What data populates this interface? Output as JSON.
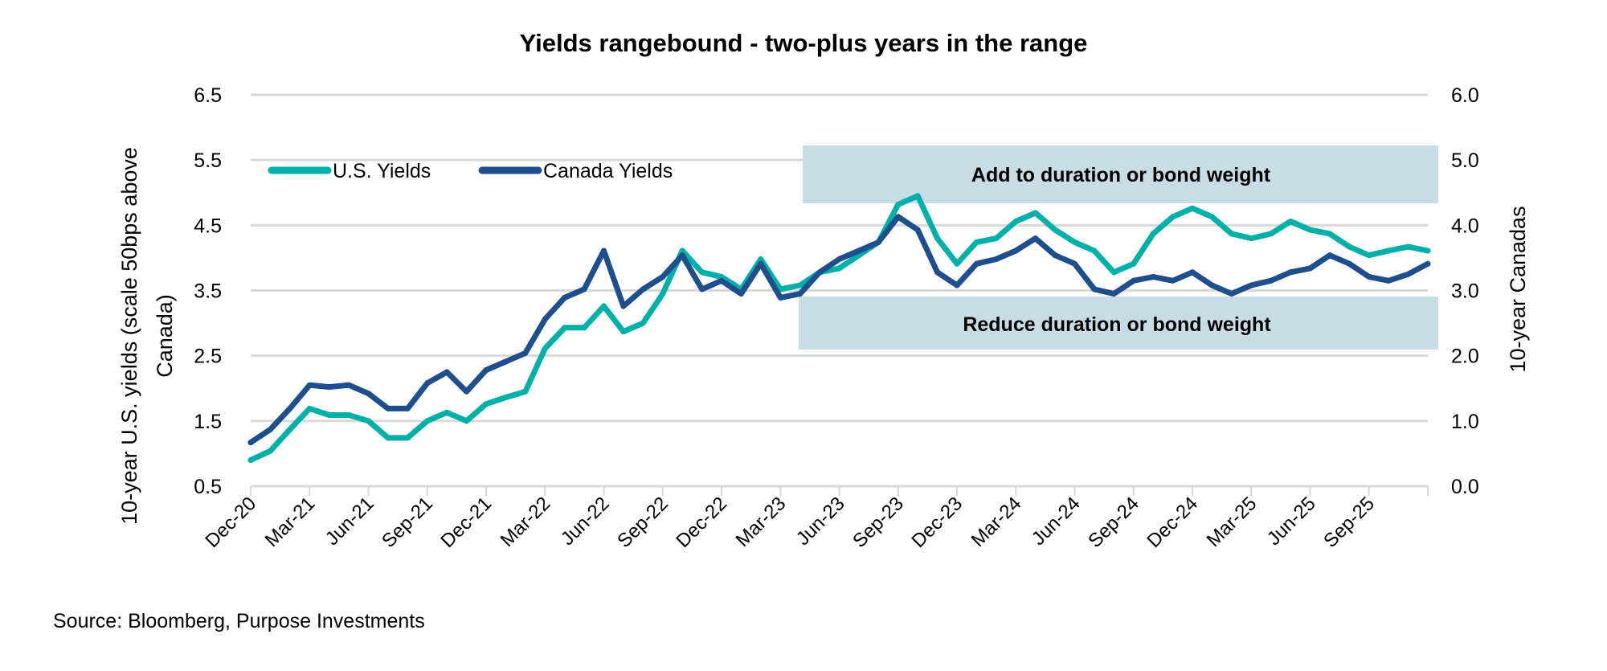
{
  "chart_data": {
    "type": "line",
    "title": "Yields rangebound - two-plus years in the range",
    "ylabel_left": [
      "10-year U.S. yields (scale 50bps above",
      "Canada)"
    ],
    "ylabel_right": "10-year Canadas",
    "ylim_left": [
      0.5,
      6.5
    ],
    "yticks_left": [
      "6.5",
      "5.5",
      "4.5",
      "3.5",
      "2.5",
      "1.5",
      "0.5"
    ],
    "ylim_right": [
      0.0,
      6.0
    ],
    "yticks_right": [
      "6.0",
      "5.0",
      "4.0",
      "3.0",
      "2.0",
      "1.0",
      "0.0"
    ],
    "xlim": [
      "2020-12",
      "2025-12"
    ],
    "xtick_labels": [
      "Dec-20",
      "Mar-21",
      "Jun-21",
      "Sep-21",
      "Dec-21",
      "Mar-22",
      "Jun-22",
      "Sep-22",
      "Dec-22",
      "Mar-23",
      "Jun-23",
      "Sep-23",
      "Dec-23",
      "Mar-24",
      "Jun-24",
      "Sep-24",
      "Dec-24",
      "Mar-25",
      "Jun-25",
      "Sep-25"
    ],
    "grid": true,
    "legend_position": "top-left",
    "x": [
      "2020-12",
      "2021-01",
      "2021-02",
      "2021-03",
      "2021-04",
      "2021-05",
      "2021-06",
      "2021-07",
      "2021-08",
      "2021-09",
      "2021-10",
      "2021-11",
      "2021-12",
      "2022-01",
      "2022-02",
      "2022-03",
      "2022-04",
      "2022-05",
      "2022-06",
      "2022-07",
      "2022-08",
      "2022-09",
      "2022-10",
      "2022-11",
      "2022-12",
      "2023-01",
      "2023-02",
      "2023-03",
      "2023-04",
      "2023-05",
      "2023-06",
      "2023-07",
      "2023-08",
      "2023-09",
      "2023-10",
      "2023-11",
      "2023-12",
      "2024-01",
      "2024-02",
      "2024-03",
      "2024-04",
      "2024-05",
      "2024-06",
      "2024-07",
      "2024-08",
      "2024-09",
      "2024-10",
      "2024-11",
      "2024-12",
      "2025-01",
      "2025-02",
      "2025-03",
      "2025-04",
      "2025-05",
      "2025-06",
      "2025-07",
      "2025-08",
      "2025-09",
      "2025-10",
      "2025-11",
      "2025-12"
    ],
    "series": [
      {
        "name": "U.S. Yields",
        "axis": "left",
        "color": "#00B0A8",
        "values": [
          0.9,
          1.04,
          1.37,
          1.69,
          1.59,
          1.59,
          1.5,
          1.24,
          1.24,
          1.5,
          1.63,
          1.5,
          1.76,
          1.86,
          1.95,
          2.61,
          2.93,
          2.93,
          3.26,
          2.87,
          3.0,
          3.45,
          4.11,
          3.78,
          3.71,
          3.52,
          3.98,
          3.52,
          3.58,
          3.78,
          3.84,
          4.04,
          4.24,
          4.82,
          4.95,
          4.3,
          3.91,
          4.24,
          4.3,
          4.56,
          4.69,
          4.43,
          4.24,
          4.11,
          3.78,
          3.91,
          4.37,
          4.63,
          4.76,
          4.63,
          4.37,
          4.3,
          4.37,
          4.56,
          4.43,
          4.37,
          4.17,
          4.04,
          4.11,
          4.17,
          4.11
        ]
      },
      {
        "name": "Canada Yields",
        "axis": "right",
        "color": "#1F4E8C",
        "values": [
          0.67,
          0.87,
          1.19,
          1.55,
          1.52,
          1.55,
          1.42,
          1.19,
          1.19,
          1.58,
          1.75,
          1.45,
          1.78,
          1.91,
          2.04,
          2.56,
          2.89,
          3.02,
          3.61,
          2.76,
          3.02,
          3.21,
          3.54,
          3.02,
          3.15,
          2.95,
          3.41,
          2.89,
          2.95,
          3.28,
          3.48,
          3.61,
          3.74,
          4.13,
          3.93,
          3.28,
          3.08,
          3.41,
          3.48,
          3.61,
          3.8,
          3.54,
          3.41,
          3.02,
          2.95,
          3.15,
          3.21,
          3.15,
          3.28,
          3.08,
          2.95,
          3.08,
          3.15,
          3.28,
          3.34,
          3.54,
          3.41,
          3.21,
          3.15,
          3.25,
          3.41
        ]
      }
    ],
    "annotations": [
      {
        "text": "Add to duration or bond weight",
        "range_right_axis": [
          4.3,
          5.25
        ],
        "color": "#C8DCE5"
      },
      {
        "text": "Reduce duration or bond weight",
        "range_right_axis": [
          2.15,
          2.95
        ],
        "color": "#C8DCE5"
      }
    ]
  },
  "source": "Source: Bloomberg, Purpose Investments"
}
